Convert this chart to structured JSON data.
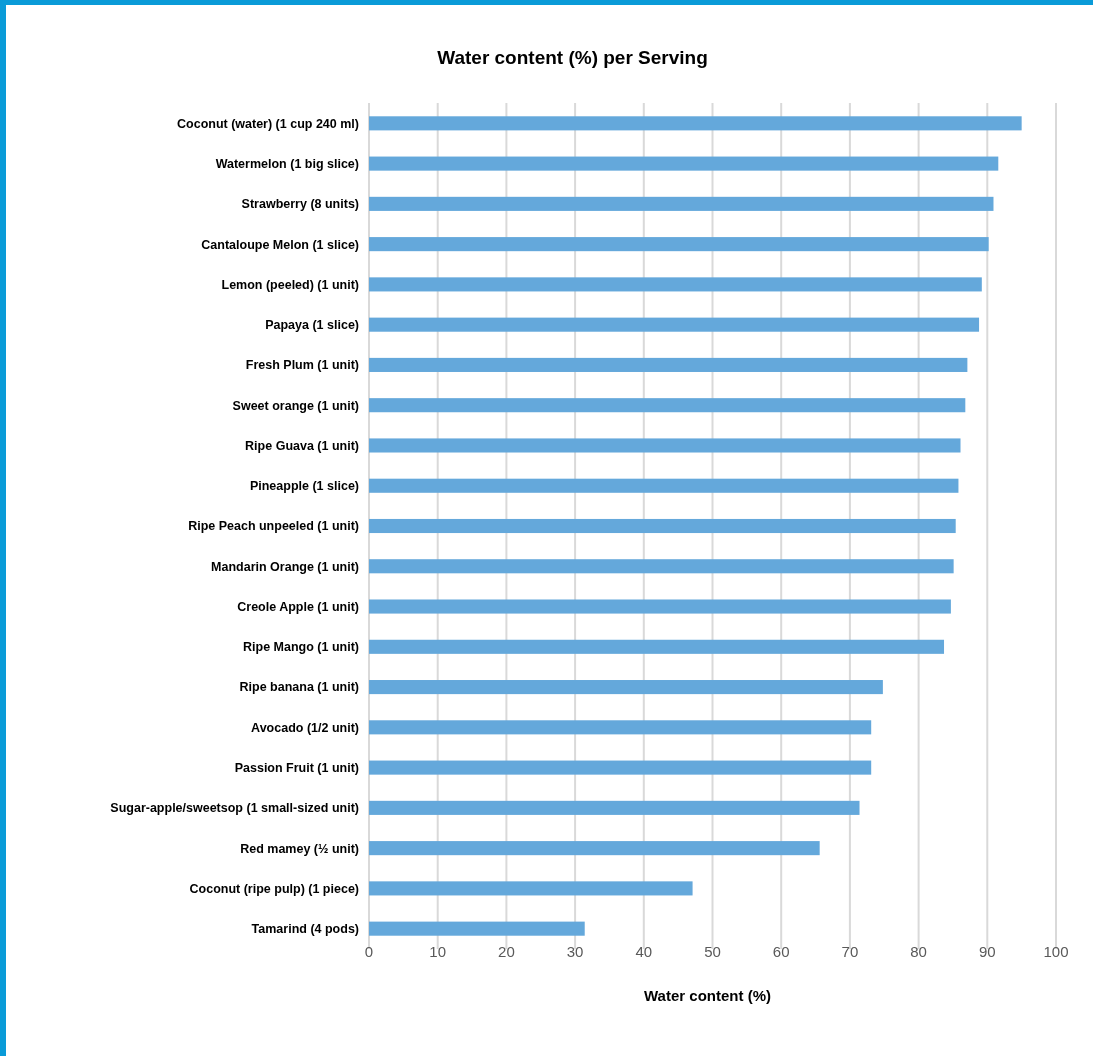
{
  "chart_data": {
    "type": "bar",
    "orientation": "horizontal",
    "title": "Water content (%) per Serving",
    "xlabel": "Water content (%)",
    "categories": [
      "Coconut (water) (1 cup 240 ml)",
      "Watermelon (1 big slice)",
      "Strawberry (8 units)",
      "Cantaloupe Melon (1 slice)",
      "Lemon (peeled) (1 unit)",
      "Papaya (1 slice)",
      "Fresh Plum (1 unit)",
      "Sweet orange (1 unit)",
      "Ripe Guava (1 unit)",
      "Pineapple (1 slice)",
      "Ripe Peach unpeeled (1 unit)",
      "Mandarin Orange (1 unit)",
      "Creole Apple (1 unit)",
      "Ripe Mango (1 unit)",
      "Ripe banana (1 unit)",
      "Avocado (1/2 unit)",
      "Passion Fruit (1 unit)",
      "Sugar-apple/sweetsop (1 small-sized unit)",
      "Red mamey (½ unit)",
      "Coconut (ripe pulp) (1 piece)",
      "Tamarind (4 pods)"
    ],
    "values": [
      95.0,
      91.6,
      90.9,
      90.2,
      89.2,
      88.8,
      87.1,
      86.8,
      86.1,
      85.8,
      85.4,
      85.1,
      84.7,
      83.7,
      74.8,
      73.1,
      73.1,
      71.4,
      65.6,
      47.1,
      31.4
    ],
    "color": "#64a8db",
    "xlim": [
      0,
      100
    ],
    "xticks": [
      0,
      10,
      20,
      30,
      40,
      50,
      60,
      70,
      80,
      90,
      100
    ],
    "grid": "x"
  }
}
